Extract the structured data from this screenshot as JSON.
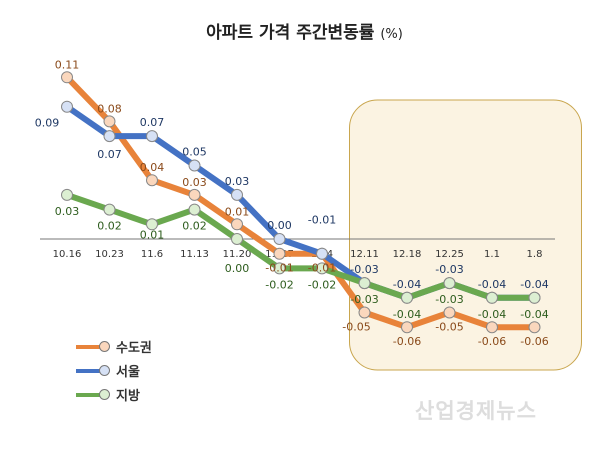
{
  "chart_data": {
    "type": "line",
    "title": "아파트 가격 주간변동률",
    "unit": "(%)",
    "categories": [
      "10.16",
      "10.23",
      "11.6",
      "11.13",
      "11.20",
      "11.27",
      "12.4",
      "12.11",
      "12.18",
      "12.25",
      "1.1",
      "1.8"
    ],
    "series": [
      {
        "name": "수도권",
        "color": "#e8833a",
        "marker": "#fad7bd",
        "label_color": "#8a4a1a",
        "values": [
          0.11,
          0.08,
          0.04,
          0.03,
          0.01,
          -0.01,
          -0.01,
          -0.05,
          -0.06,
          -0.05,
          -0.06,
          -0.06
        ]
      },
      {
        "name": "서울",
        "color": "#4472c4",
        "marker": "#d6e1f5",
        "label_color": "#1f3864",
        "values": [
          0.09,
          0.07,
          0.07,
          0.05,
          0.03,
          0.0,
          -0.01,
          -0.03,
          -0.04,
          -0.03,
          -0.04,
          -0.04
        ]
      },
      {
        "name": "지방",
        "color": "#6aa84f",
        "marker": "#dcefd2",
        "label_color": "#2e5d1e",
        "values": [
          0.03,
          0.02,
          0.01,
          0.02,
          0.0,
          -0.02,
          -0.02,
          -0.03,
          -0.04,
          -0.03,
          -0.04,
          -0.04
        ]
      }
    ],
    "ylim": [
      -0.07,
      0.12
    ],
    "highlight_range": [
      "12.11",
      "1.8"
    ],
    "legend": "bottom-left",
    "grid": false
  },
  "watermark": "산업경제뉴스"
}
